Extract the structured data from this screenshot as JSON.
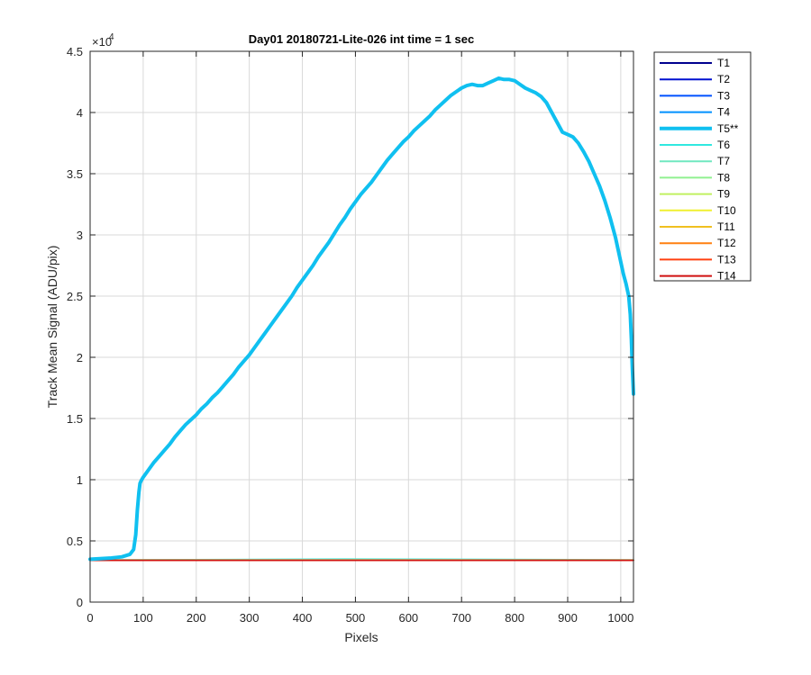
{
  "chart_data": {
    "type": "line",
    "title": "Day01 20180721-Lite-026 int time = 1 sec",
    "xlabel": "Pixels",
    "ylabel": "Track Mean Signal (ADU/pix)",
    "exponent_label": "×10",
    "exponent_power": "4",
    "xlim": [
      0,
      1024
    ],
    "ylim": [
      0,
      45000
    ],
    "xticks": [
      0,
      100,
      200,
      300,
      400,
      500,
      600,
      700,
      800,
      900,
      1000
    ],
    "yticks": [
      0,
      5000,
      10000,
      15000,
      20000,
      25000,
      30000,
      35000,
      40000,
      45000
    ],
    "ytick_labels": [
      "0",
      "0.5",
      "1",
      "1.5",
      "2",
      "2.5",
      "3",
      "3.5",
      "4",
      "4.5"
    ],
    "grid": true,
    "legend_position": "outside-right",
    "series": [
      {
        "name": "T1",
        "color": "#00008f",
        "highlight": false,
        "x": [
          0,
          1024
        ],
        "y": [
          3420,
          3420
        ]
      },
      {
        "name": "T2",
        "color": "#0010d0",
        "highlight": false,
        "x": [
          0,
          1024
        ],
        "y": [
          3425,
          3425
        ]
      },
      {
        "name": "T3",
        "color": "#0050ff",
        "highlight": false,
        "x": [
          0,
          1024
        ],
        "y": [
          3430,
          3430
        ]
      },
      {
        "name": "T4",
        "color": "#0090ff",
        "highlight": false,
        "x": [
          0,
          1024
        ],
        "y": [
          3435,
          3435
        ]
      },
      {
        "name": "T5**",
        "color": "#10c0f0",
        "highlight": true,
        "x": [
          0,
          40,
          60,
          75,
          82,
          86,
          89,
          92,
          94,
          96,
          100,
          110,
          120,
          130,
          140,
          150,
          160,
          170,
          180,
          190,
          200,
          210,
          220,
          230,
          240,
          250,
          260,
          270,
          280,
          290,
          300,
          310,
          320,
          330,
          340,
          350,
          360,
          370,
          380,
          390,
          400,
          410,
          420,
          430,
          440,
          450,
          460,
          470,
          480,
          490,
          500,
          510,
          520,
          530,
          540,
          550,
          560,
          570,
          580,
          590,
          600,
          610,
          620,
          630,
          640,
          650,
          660,
          670,
          680,
          690,
          700,
          710,
          720,
          730,
          740,
          750,
          760,
          770,
          780,
          790,
          800,
          810,
          820,
          830,
          840,
          850,
          860,
          870,
          880,
          890,
          900,
          910,
          920,
          930,
          940,
          950,
          960,
          970,
          980,
          990,
          1000,
          1005,
          1010,
          1015,
          1018,
          1020,
          1022,
          1024
        ],
        "y": [
          3500,
          3600,
          3700,
          3900,
          4300,
          5500,
          7500,
          9000,
          9700,
          9900,
          10200,
          10800,
          11400,
          11900,
          12400,
          12900,
          13500,
          14000,
          14500,
          14900,
          15300,
          15800,
          16200,
          16700,
          17100,
          17600,
          18100,
          18600,
          19200,
          19700,
          20200,
          20800,
          21400,
          22000,
          22600,
          23200,
          23800,
          24400,
          25000,
          25700,
          26300,
          26900,
          27500,
          28200,
          28800,
          29400,
          30100,
          30800,
          31400,
          32100,
          32700,
          33300,
          33800,
          34300,
          34900,
          35500,
          36100,
          36600,
          37100,
          37600,
          38000,
          38500,
          38900,
          39300,
          39700,
          40200,
          40600,
          41000,
          41400,
          41700,
          42000,
          42200,
          42300,
          42200,
          42200,
          42400,
          42600,
          42800,
          42700,
          42700,
          42600,
          42300,
          42000,
          41800,
          41600,
          41300,
          40800,
          40000,
          39200,
          38400,
          38200,
          38000,
          37500,
          36800,
          36000,
          35000,
          34000,
          32800,
          31400,
          29800,
          27800,
          26800,
          26000,
          25000,
          23500,
          21500,
          19000,
          17000
        ]
      },
      {
        "name": "T6",
        "color": "#30e8e0",
        "highlight": false,
        "x": [
          0,
          500,
          1024
        ],
        "y": [
          3450,
          3520,
          3460
        ]
      },
      {
        "name": "T7",
        "color": "#70e8c0",
        "highlight": false,
        "x": [
          0,
          500,
          1024
        ],
        "y": [
          3440,
          3490,
          3450
        ]
      },
      {
        "name": "T8",
        "color": "#90f090",
        "highlight": false,
        "x": [
          0,
          1024
        ],
        "y": [
          3440,
          3440
        ]
      },
      {
        "name": "T9",
        "color": "#c0f060",
        "highlight": false,
        "x": [
          0,
          1024
        ],
        "y": [
          3435,
          3435
        ]
      },
      {
        "name": "T10",
        "color": "#f0f030",
        "highlight": false,
        "x": [
          0,
          1024
        ],
        "y": [
          3430,
          3430
        ]
      },
      {
        "name": "T11",
        "color": "#f0c020",
        "highlight": false,
        "x": [
          0,
          1024
        ],
        "y": [
          3425,
          3425
        ]
      },
      {
        "name": "T12",
        "color": "#ff8010",
        "highlight": false,
        "x": [
          0,
          1024
        ],
        "y": [
          3420,
          3420
        ]
      },
      {
        "name": "T13",
        "color": "#ff4010",
        "highlight": false,
        "x": [
          0,
          1024
        ],
        "y": [
          3415,
          3415
        ]
      },
      {
        "name": "T14",
        "color": "#d01010",
        "highlight": false,
        "x": [
          0,
          1024
        ],
        "y": [
          3410,
          3410
        ]
      }
    ]
  }
}
